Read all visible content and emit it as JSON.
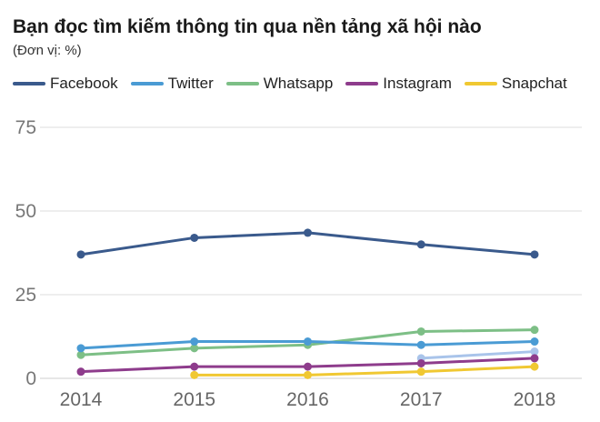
{
  "chart_data": {
    "type": "line",
    "title": "Bạn đọc tìm kiếm thông tin qua nền tảng xã hội nào",
    "subtitle": "(Đơn vị: %)",
    "categories": [
      "2014",
      "2015",
      "2016",
      "2017",
      "2018"
    ],
    "yticks": [
      "0",
      "25",
      "50",
      "75"
    ],
    "ylim": [
      0,
      80
    ],
    "grid": true,
    "legend_position": "top",
    "series": [
      {
        "name": "Facebook",
        "color": "#3a5a8c",
        "values": [
          37,
          42,
          43.5,
          40,
          37
        ]
      },
      {
        "name": "Twitter",
        "color": "#4a9bd4",
        "values": [
          9,
          11,
          11,
          10,
          11
        ]
      },
      {
        "name": "Whatsapp",
        "color": "#7dbf86",
        "values": [
          7,
          9,
          10,
          14,
          14.5
        ]
      },
      {
        "name": "Instagram",
        "color": "#8e3c8c",
        "values": [
          2,
          3.5,
          3.5,
          4.5,
          6
        ]
      },
      {
        "name": "Snapchat",
        "color": "#f0c832",
        "values": [
          null,
          1,
          1,
          2,
          3.5
        ]
      }
    ],
    "extra_series": [
      {
        "name": "",
        "color": "#a9c4ea",
        "values": [
          null,
          null,
          null,
          6,
          8
        ]
      }
    ]
  }
}
